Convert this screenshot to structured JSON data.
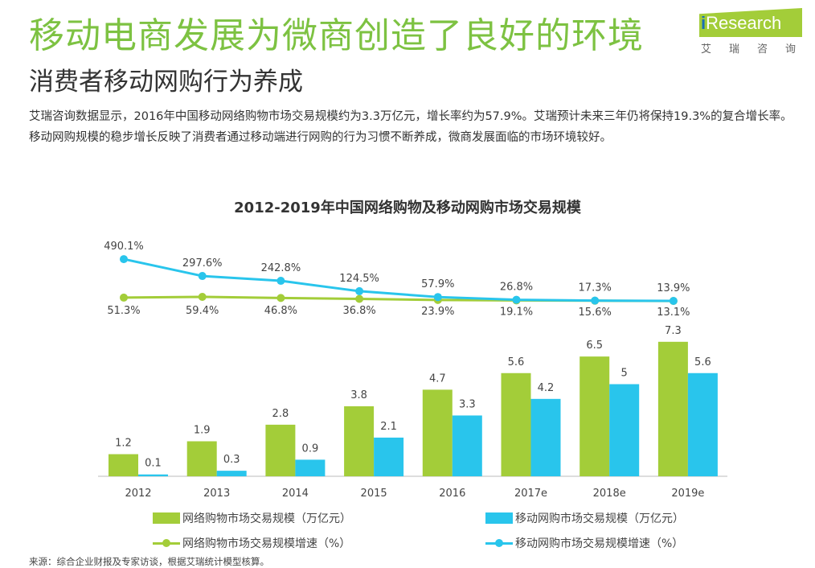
{
  "header": {
    "title": "移动电商发展为微商创造了良好的环境",
    "subtitle": "消费者移动网购行为养成",
    "paragraph": "艾瑞咨询数据显示，2016年中国移动网络购物市场交易规模约为3.3万亿元，增长率约为57.9%。艾瑞预计未来三年仍将保持19.3%的复合增长率。移动网购规模的稳步增长反映了消费者通过移动端进行网购的行为习惯不断养成，微商发展面临的市场环境较好。"
  },
  "logo": {
    "brand": "iResearch",
    "cn": "艾瑞咨询"
  },
  "chart_data": {
    "type": "bar",
    "title": "2012-2019年中国网络购物及移动网购市场交易规模",
    "categories": [
      "2012",
      "2013",
      "2014",
      "2015",
      "2016",
      "2017e",
      "2018e",
      "2019e"
    ],
    "series": [
      {
        "name": "网络购物市场交易规模（万亿元）",
        "type": "bar",
        "color": "#a3cd39",
        "values": [
          1.2,
          1.9,
          2.8,
          3.8,
          4.7,
          5.6,
          6.5,
          7.3
        ]
      },
      {
        "name": "移动网购市场交易规模（万亿元）",
        "type": "bar",
        "color": "#29c5ec",
        "values": [
          0.1,
          0.3,
          0.9,
          2.1,
          3.3,
          4.2,
          5.0,
          5.6
        ]
      },
      {
        "name": "网络购物市场交易规模增速（%）",
        "type": "line",
        "color": "#a3cd39",
        "values": [
          51.3,
          59.4,
          46.8,
          36.8,
          23.9,
          19.1,
          15.6,
          13.1
        ]
      },
      {
        "name": "移动网购市场交易规模增速（%）",
        "type": "line",
        "color": "#29c5ec",
        "values": [
          490.1,
          297.6,
          242.8,
          124.5,
          57.9,
          26.8,
          17.3,
          13.9
        ]
      }
    ],
    "legend": "bottom",
    "grid": false
  },
  "source": "来源：综合企业财报及专家访谈，根据艾瑞统计模型核算。"
}
